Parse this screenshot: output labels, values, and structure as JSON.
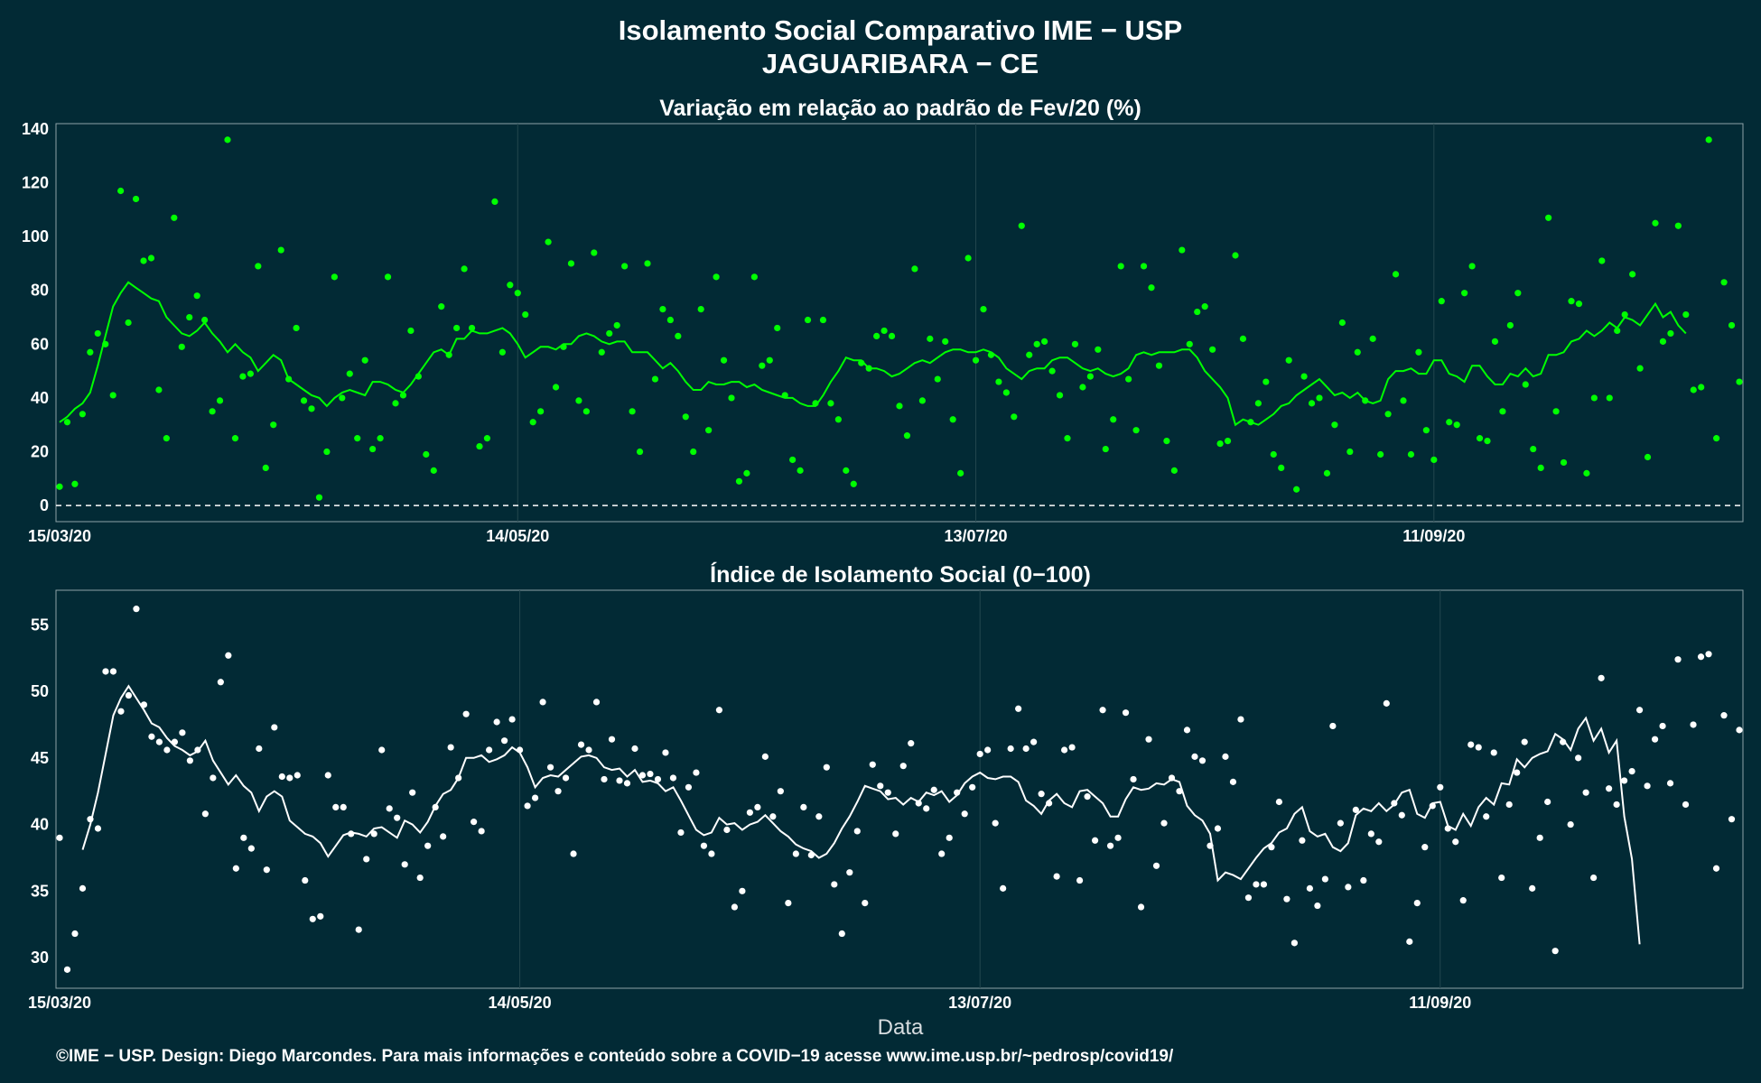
{
  "header": {
    "title": "Isolamento Social Comparativo IME − USP",
    "subtitle": "JAGUARIBARA − CE"
  },
  "footer": {
    "credit": "©IME − USP. Design: Diego Marcondes. Para mais informações e conteúdo sobre a COVID−19 acesse www.ime.usp.br/~pedrosp/covid19/"
  },
  "colors": {
    "background": "#022a35",
    "top_series": "#00ff00",
    "bottom_series": "#ffffff",
    "grid": "#23474f"
  },
  "chart_data": [
    {
      "type": "scatter",
      "title": "Variação em relação ao padrão de Fev/20 (%)",
      "xlabel": "",
      "ylabel": "",
      "x_ticks": [
        "15/03/20",
        "14/05/20",
        "13/07/20",
        "11/09/20"
      ],
      "x_range": [
        "15/03/20",
        "21/10/20"
      ],
      "y_ticks": [
        0,
        20,
        40,
        60,
        80,
        100,
        120,
        140
      ],
      "ylim": [
        -6,
        142
      ],
      "reference_line": 0,
      "grid": true,
      "points": [
        7,
        31,
        8,
        34,
        57,
        64,
        60,
        41,
        117,
        68,
        114,
        91,
        92,
        43,
        25,
        107,
        59,
        70,
        78,
        69,
        35,
        39,
        136,
        25,
        48,
        49,
        89,
        14,
        30,
        95,
        47,
        66,
        39,
        36,
        3,
        20,
        85,
        40,
        49,
        25,
        54,
        21,
        25,
        85,
        38,
        41,
        65,
        48,
        19,
        13,
        74,
        56,
        66,
        88,
        66,
        22,
        25,
        113,
        57,
        82,
        79,
        71,
        31,
        35,
        98,
        44,
        59,
        90,
        39,
        35,
        94,
        57,
        64,
        67,
        89,
        35,
        20,
        90,
        47,
        73,
        69,
        63,
        33,
        20,
        73,
        28,
        85,
        54,
        40,
        9,
        12,
        85,
        52,
        54,
        66,
        41,
        17,
        13,
        69,
        38,
        69,
        38,
        32,
        13,
        8,
        53,
        51,
        63,
        65,
        63,
        37,
        26,
        88,
        39,
        62,
        47,
        61,
        32,
        12,
        92,
        54,
        73,
        56,
        46,
        42,
        33,
        104,
        56,
        60,
        61,
        50,
        41,
        25,
        60,
        44,
        48,
        58,
        21,
        32,
        89,
        47,
        28,
        89,
        81,
        52,
        24,
        13,
        95,
        60,
        72,
        74,
        58,
        23,
        24,
        93,
        62,
        31,
        38,
        46,
        19,
        14,
        54,
        6,
        48,
        38,
        40,
        12,
        30,
        68,
        20,
        57,
        39,
        62,
        19,
        34,
        86,
        39,
        19,
        57,
        28,
        17,
        76,
        31,
        30,
        79,
        89,
        25,
        24,
        61,
        35,
        67,
        79,
        45,
        21,
        14,
        107,
        35,
        16,
        76,
        75,
        12,
        40,
        91,
        40,
        65,
        71,
        86,
        51,
        18,
        105,
        61,
        64,
        104,
        71,
        43,
        44,
        136,
        25,
        83,
        67,
        46
      ],
      "moving_avg": [
        31,
        33,
        36,
        38,
        42,
        52,
        63,
        74,
        79,
        83,
        81,
        79,
        77,
        76,
        70,
        67,
        64,
        63,
        65,
        68,
        64,
        61,
        57,
        60,
        57,
        55,
        50,
        53,
        56,
        54,
        47,
        45,
        43,
        41,
        40,
        37,
        40,
        42,
        43,
        42,
        41,
        46,
        46,
        45,
        43,
        42,
        45,
        49,
        53,
        57,
        58,
        56,
        62,
        62,
        65,
        64,
        64,
        65,
        66,
        64,
        60,
        55,
        57,
        59,
        59,
        58,
        60,
        60,
        63,
        64,
        63,
        61,
        60,
        61,
        61,
        57,
        57,
        57,
        54,
        51,
        53,
        50,
        46,
        43,
        43,
        46,
        45,
        45,
        46,
        46,
        44,
        45,
        43,
        42,
        41,
        40,
        40,
        38,
        37,
        37,
        41,
        46,
        50,
        55,
        54,
        54,
        51,
        51,
        50,
        48,
        49,
        51,
        53,
        54,
        53,
        55,
        57,
        58,
        58,
        57,
        57,
        58,
        57,
        55,
        51,
        49,
        47,
        50,
        51,
        51,
        54,
        55,
        55,
        53,
        51,
        50,
        51,
        49,
        48,
        49,
        51,
        56,
        57,
        56,
        57,
        57,
        57,
        58,
        58,
        55,
        50,
        47,
        44,
        40,
        30,
        32,
        31,
        30,
        32,
        34,
        37,
        38,
        41,
        43,
        45,
        47,
        44,
        41,
        42,
        40,
        42,
        39,
        38,
        39,
        47,
        50,
        50,
        51,
        49,
        49,
        54,
        54,
        49,
        48,
        46,
        52,
        52,
        48,
        45,
        45,
        49,
        48,
        51,
        48,
        49,
        56,
        56,
        57,
        61,
        62,
        65,
        63,
        65,
        68,
        66,
        70,
        69,
        67,
        71,
        75,
        70,
        72,
        67,
        64
      ]
    },
    {
      "type": "scatter",
      "title": "Índice de Isolamento Social (0−100)",
      "xlabel": "Data",
      "ylabel": "",
      "x_ticks": [
        "15/03/20",
        "14/05/20",
        "13/07/20",
        "11/09/20"
      ],
      "x_range": [
        "15/03/20",
        "21/10/20"
      ],
      "y_ticks": [
        30,
        35,
        40,
        45,
        50,
        55
      ],
      "ylim": [
        27.7,
        57.6
      ],
      "grid": true,
      "points": [
        39.0,
        29.1,
        31.8,
        35.2,
        40.4,
        39.7,
        51.5,
        51.5,
        48.5,
        49.7,
        56.2,
        49.0,
        46.6,
        46.2,
        45.6,
        46.2,
        46.9,
        44.8,
        45.6,
        40.8,
        43.5,
        50.7,
        52.7,
        36.7,
        39.0,
        38.2,
        45.7,
        36.6,
        47.3,
        43.6,
        43.5,
        43.7,
        35.8,
        32.9,
        33.1,
        43.7,
        41.3,
        41.3,
        39.3,
        32.1,
        37.4,
        39.3,
        45.6,
        41.2,
        40.5,
        37.0,
        42.4,
        36.0,
        38.4,
        41.3,
        39.1,
        45.8,
        43.5,
        48.3,
        40.2,
        39.5,
        45.6,
        47.7,
        46.3,
        47.9,
        45.6,
        41.4,
        42.0,
        49.2,
        44.3,
        42.5,
        43.5,
        37.8,
        46.0,
        45.6,
        49.2,
        43.4,
        46.4,
        43.3,
        43.1,
        45.7,
        43.7,
        43.8,
        43.4,
        45.4,
        43.5,
        39.4,
        42.8,
        43.9,
        38.4,
        37.8,
        48.6,
        39.6,
        33.8,
        35.0,
        40.9,
        41.3,
        45.1,
        40.6,
        42.5,
        34.1,
        37.8,
        41.3,
        37.7,
        40.6,
        44.3,
        35.5,
        31.8,
        36.4,
        39.5,
        34.1,
        44.5,
        42.9,
        42.4,
        39.3,
        44.4,
        46.1,
        41.6,
        41.2,
        42.6,
        37.8,
        39.0,
        42.4,
        40.8,
        42.8,
        45.3,
        45.6,
        40.1,
        35.2,
        45.7,
        48.7,
        45.7,
        46.2,
        42.3,
        41.6,
        36.1,
        45.6,
        45.8,
        35.8,
        42.1,
        38.8,
        48.6,
        38.4,
        39.0,
        48.4,
        43.4,
        33.8,
        46.4,
        36.9,
        40.1,
        43.5,
        42.5,
        47.1,
        45.1,
        44.8,
        38.4,
        39.7,
        45.1,
        43.2,
        47.9,
        34.5,
        35.5,
        35.5,
        38.3,
        41.7,
        34.4,
        31.1,
        38.8,
        35.2,
        33.9,
        35.9,
        47.4,
        40.1,
        35.3,
        41.1,
        35.8,
        39.3,
        38.7,
        49.1,
        41.6,
        40.7,
        31.2,
        34.1,
        38.3,
        41.4,
        42.8,
        39.7,
        38.7,
        34.3,
        46.0,
        45.8,
        40.6,
        45.4,
        36.0,
        41.5,
        43.9,
        46.2,
        35.2,
        39.0,
        41.7,
        30.5,
        46.2,
        40.0,
        45.0,
        42.4,
        36.0,
        51.0,
        42.7,
        41.5,
        43.3,
        44.0,
        48.6,
        42.9,
        46.4,
        47.4,
        43.1,
        52.4,
        41.5,
        47.5,
        52.6,
        52.8,
        36.7,
        48.2,
        40.4,
        47.1
      ],
      "moving_avg": [
        null,
        null,
        null,
        38.1,
        40.0,
        42.4,
        45.3,
        48.2,
        49.5,
        50.4,
        49.5,
        48.6,
        47.6,
        47.3,
        46.5,
        45.9,
        45.6,
        45.2,
        45.5,
        46.3,
        44.8,
        43.9,
        43.0,
        43.7,
        42.9,
        42.4,
        41.0,
        42.1,
        42.5,
        42.1,
        40.3,
        39.8,
        39.3,
        39.1,
        38.6,
        37.6,
        38.4,
        39.2,
        39.4,
        39.3,
        39.1,
        39.7,
        39.8,
        39.4,
        39.0,
        40.3,
        40.0,
        39.4,
        40.2,
        41.4,
        42.3,
        42.6,
        43.5,
        45.0,
        45.0,
        45.2,
        44.7,
        44.9,
        45.2,
        45.8,
        45.4,
        44.3,
        42.8,
        43.5,
        43.7,
        43.6,
        44.1,
        44.6,
        45.1,
        45.2,
        45.0,
        44.3,
        44.1,
        44.2,
        43.6,
        44.1,
        43.2,
        43.3,
        43.1,
        42.5,
        42.8,
        41.8,
        40.7,
        39.6,
        39.2,
        39.4,
        40.5,
        40.0,
        40.1,
        39.6,
        40.0,
        40.2,
        40.7,
        40.1,
        39.5,
        39.1,
        38.5,
        38.2,
        38.0,
        37.5,
        37.8,
        38.6,
        39.7,
        40.6,
        41.7,
        42.9,
        42.7,
        42.5,
        41.9,
        42.0,
        41.5,
        42.0,
        41.7,
        42.4,
        42.2,
        42.5,
        41.7,
        42.2,
        43.1,
        43.6,
        43.9,
        43.5,
        43.4,
        43.6,
        43.6,
        43.2,
        41.8,
        41.4,
        40.8,
        41.8,
        42.3,
        41.6,
        41.3,
        42.5,
        42.6,
        42.1,
        41.6,
        40.6,
        40.6,
        41.9,
        42.8,
        42.6,
        42.7,
        43.1,
        43.0,
        43.4,
        43.2,
        41.4,
        40.7,
        40.3,
        39.3,
        35.8,
        36.4,
        36.2,
        35.9,
        36.7,
        37.5,
        38.2,
        38.6,
        39.4,
        39.7,
        40.8,
        41.3,
        39.5,
        39.1,
        39.3,
        38.3,
        38.0,
        38.6,
        40.7,
        41.2,
        41.0,
        41.6,
        41.0,
        41.5,
        42.4,
        42.6,
        40.8,
        40.5,
        41.6,
        41.7,
        39.9,
        39.6,
        40.8,
        39.9,
        41.3,
        42.0,
        41.5,
        43.1,
        43.0,
        44.9,
        44.3,
        45.0,
        45.3,
        45.5,
        46.8,
        46.4,
        45.6,
        47.2,
        48.0,
        46.3,
        47.2,
        45.4,
        46.3,
        40.6,
        37.4,
        31.0
      ]
    }
  ]
}
